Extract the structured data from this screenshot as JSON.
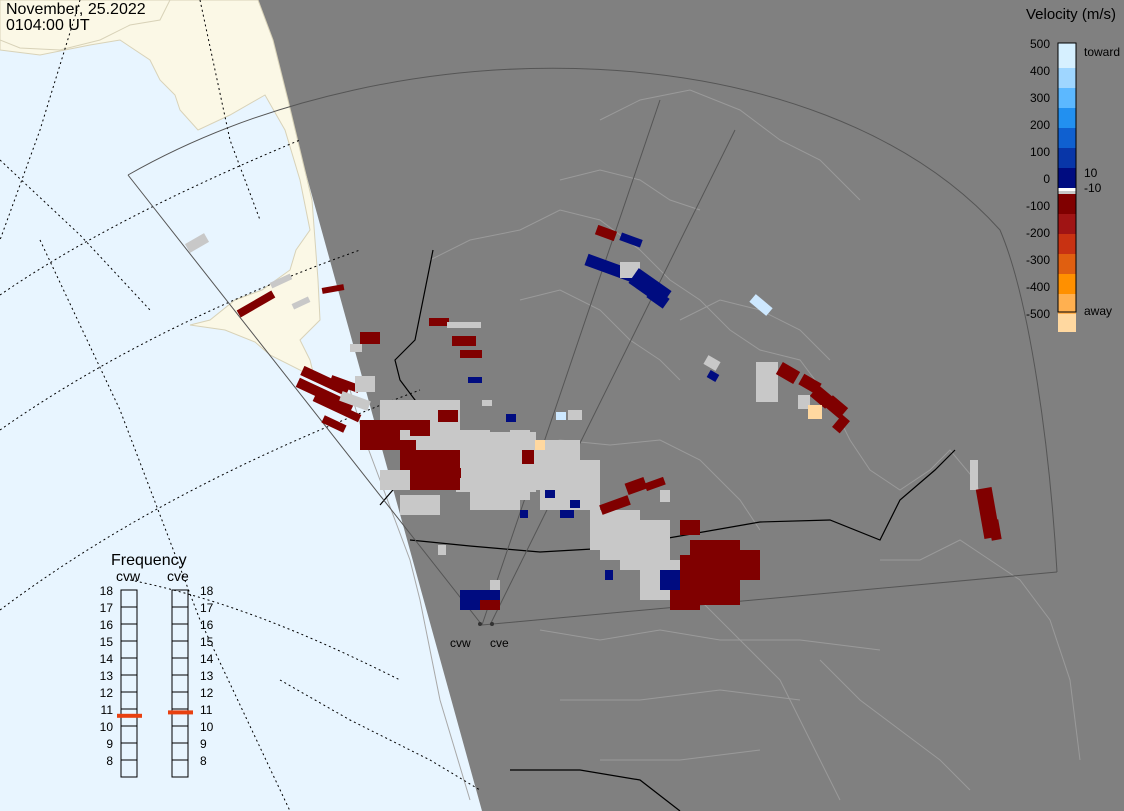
{
  "header": {
    "date": "November, 25.2022",
    "time": "0104:00 UT"
  },
  "map": {
    "radars": [
      {
        "code": "cvw"
      },
      {
        "code": "cve"
      }
    ],
    "colors": {
      "day_ocean": "#e8f5ff",
      "day_land": "#fbf8e6",
      "night": "#808080",
      "night_coast": "#9a9a9a",
      "fov": "#555555",
      "border": "#000000",
      "ground_scatter": "#c8c8c8"
    }
  },
  "legend": {
    "title": "Velocity (m/s)",
    "ticks": [
      "500",
      "400",
      "300",
      "200",
      "100",
      "0",
      "-100",
      "-200",
      "-300",
      "-400",
      "-500"
    ],
    "threshold_pos": "10",
    "threshold_neg": "-10",
    "label_toward": "toward",
    "label_away": "away",
    "colors": [
      "#d6f0ff",
      "#9fd6ff",
      "#5cb8ff",
      "#2290f0",
      "#0f60d0",
      "#0836a8",
      "#000c80",
      "#ffffff",
      "#c8c8c8",
      "#800000",
      "#a01414",
      "#c83212",
      "#e05f10",
      "#ff9000",
      "#ffb050",
      "#ffd8a0"
    ]
  },
  "frequency": {
    "title": "Frequency",
    "radars": [
      "cvw",
      "cve"
    ],
    "levels": [
      "18",
      "17",
      "16",
      "15",
      "14",
      "13",
      "12",
      "11",
      "10",
      "9",
      "8"
    ],
    "cvw_value": 10.6,
    "cve_value": 10.8,
    "marker_color": "#e84010"
  }
}
